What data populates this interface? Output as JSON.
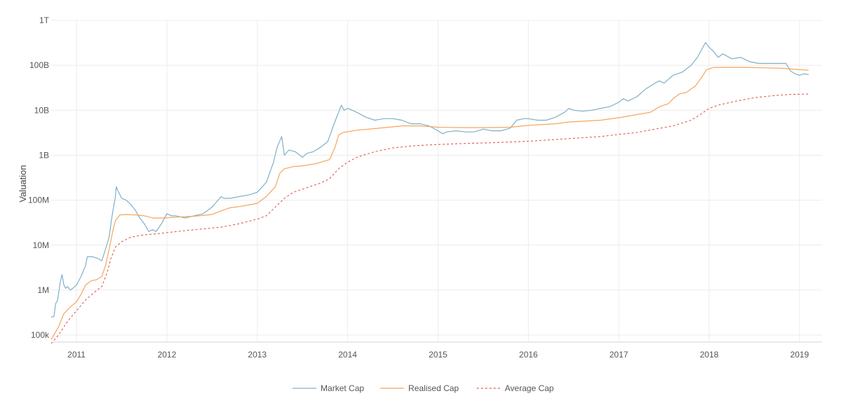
{
  "chart_data": {
    "type": "line",
    "title": "",
    "xlabel": "",
    "ylabel": "Valuation",
    "yscale": "log",
    "ylim": [
      70000,
      1000000000000
    ],
    "xlim": [
      2010.72,
      2019.25
    ],
    "grid": true,
    "legend_position": "bottom-center",
    "y_ticks": [
      {
        "value": 100000,
        "label": "100k"
      },
      {
        "value": 1000000,
        "label": "1M"
      },
      {
        "value": 10000000,
        "label": "10M"
      },
      {
        "value": 100000000,
        "label": "100M"
      },
      {
        "value": 1000000000,
        "label": "1B"
      },
      {
        "value": 10000000000,
        "label": "10B"
      },
      {
        "value": 100000000000,
        "label": "100B"
      },
      {
        "value": 1000000000000,
        "label": "1T"
      }
    ],
    "x_ticks": [
      {
        "value": 2011,
        "label": "2011"
      },
      {
        "value": 2012,
        "label": "2012"
      },
      {
        "value": 2013,
        "label": "2013"
      },
      {
        "value": 2014,
        "label": "2014"
      },
      {
        "value": 2015,
        "label": "2015"
      },
      {
        "value": 2016,
        "label": "2016"
      },
      {
        "value": 2017,
        "label": "2017"
      },
      {
        "value": 2018,
        "label": "2018"
      },
      {
        "value": 2019,
        "label": "2019"
      }
    ],
    "series": [
      {
        "name": "Market Cap",
        "color": "#7fb0c9",
        "dash": "solid",
        "points": [
          [
            2010.72,
            250000
          ],
          [
            2010.75,
            260000
          ],
          [
            2010.77,
            500000
          ],
          [
            2010.79,
            600000
          ],
          [
            2010.8,
            800000
          ],
          [
            2010.82,
            1500000
          ],
          [
            2010.84,
            2200000
          ],
          [
            2010.86,
            1300000
          ],
          [
            2010.88,
            1100000
          ],
          [
            2010.9,
            1200000
          ],
          [
            2010.93,
            1000000
          ],
          [
            2010.96,
            1100000
          ],
          [
            2011.0,
            1300000
          ],
          [
            2011.05,
            2000000
          ],
          [
            2011.1,
            3500000
          ],
          [
            2011.12,
            5500000
          ],
          [
            2011.18,
            5500000
          ],
          [
            2011.24,
            5000000
          ],
          [
            2011.28,
            4500000
          ],
          [
            2011.32,
            8000000
          ],
          [
            2011.36,
            15000000
          ],
          [
            2011.39,
            40000000
          ],
          [
            2011.41,
            70000000
          ],
          [
            2011.43,
            120000000
          ],
          [
            2011.44,
            200000000
          ],
          [
            2011.46,
            160000000
          ],
          [
            2011.5,
            110000000
          ],
          [
            2011.55,
            100000000
          ],
          [
            2011.6,
            80000000
          ],
          [
            2011.65,
            60000000
          ],
          [
            2011.7,
            40000000
          ],
          [
            2011.75,
            30000000
          ],
          [
            2011.8,
            20000000
          ],
          [
            2011.84,
            22000000
          ],
          [
            2011.88,
            20000000
          ],
          [
            2011.94,
            30000000
          ],
          [
            2012.0,
            50000000
          ],
          [
            2012.05,
            45000000
          ],
          [
            2012.1,
            45000000
          ],
          [
            2012.2,
            40000000
          ],
          [
            2012.3,
            45000000
          ],
          [
            2012.4,
            50000000
          ],
          [
            2012.5,
            70000000
          ],
          [
            2012.6,
            120000000
          ],
          [
            2012.63,
            110000000
          ],
          [
            2012.7,
            110000000
          ],
          [
            2012.8,
            120000000
          ],
          [
            2012.9,
            130000000
          ],
          [
            2013.0,
            150000000
          ],
          [
            2013.1,
            250000000
          ],
          [
            2013.18,
            700000000
          ],
          [
            2013.22,
            1500000000
          ],
          [
            2013.27,
            2600000000
          ],
          [
            2013.3,
            1000000000
          ],
          [
            2013.35,
            1300000000
          ],
          [
            2013.42,
            1200000000
          ],
          [
            2013.5,
            900000000
          ],
          [
            2013.55,
            1100000000
          ],
          [
            2013.62,
            1200000000
          ],
          [
            2013.7,
            1500000000
          ],
          [
            2013.78,
            2000000000
          ],
          [
            2013.85,
            5000000000
          ],
          [
            2013.9,
            9000000000
          ],
          [
            2013.93,
            13000000000
          ],
          [
            2013.96,
            10000000000
          ],
          [
            2014.0,
            11000000000
          ],
          [
            2014.05,
            10000000000
          ],
          [
            2014.1,
            9000000000
          ],
          [
            2014.2,
            7000000000
          ],
          [
            2014.3,
            6000000000
          ],
          [
            2014.4,
            6500000000
          ],
          [
            2014.5,
            6500000000
          ],
          [
            2014.6,
            6000000000
          ],
          [
            2014.7,
            5000000000
          ],
          [
            2014.8,
            5000000000
          ],
          [
            2014.9,
            4500000000
          ],
          [
            2015.0,
            3500000000
          ],
          [
            2015.05,
            3000000000
          ],
          [
            2015.1,
            3300000000
          ],
          [
            2015.2,
            3500000000
          ],
          [
            2015.3,
            3300000000
          ],
          [
            2015.4,
            3300000000
          ],
          [
            2015.5,
            3800000000
          ],
          [
            2015.6,
            3500000000
          ],
          [
            2015.7,
            3500000000
          ],
          [
            2015.8,
            4000000000
          ],
          [
            2015.87,
            6000000000
          ],
          [
            2015.95,
            6500000000
          ],
          [
            2016.0,
            6500000000
          ],
          [
            2016.1,
            6000000000
          ],
          [
            2016.2,
            6000000000
          ],
          [
            2016.3,
            7000000000
          ],
          [
            2016.4,
            9000000000
          ],
          [
            2016.45,
            11000000000
          ],
          [
            2016.5,
            10000000000
          ],
          [
            2016.6,
            9500000000
          ],
          [
            2016.7,
            10000000000
          ],
          [
            2016.8,
            11000000000
          ],
          [
            2016.9,
            12000000000
          ],
          [
            2017.0,
            15000000000
          ],
          [
            2017.05,
            18000000000
          ],
          [
            2017.1,
            16000000000
          ],
          [
            2017.2,
            20000000000
          ],
          [
            2017.3,
            30000000000
          ],
          [
            2017.4,
            40000000000
          ],
          [
            2017.45,
            45000000000
          ],
          [
            2017.5,
            40000000000
          ],
          [
            2017.6,
            60000000000
          ],
          [
            2017.7,
            70000000000
          ],
          [
            2017.8,
            100000000000
          ],
          [
            2017.87,
            150000000000
          ],
          [
            2017.93,
            250000000000
          ],
          [
            2017.96,
            320000000000
          ],
          [
            2018.0,
            250000000000
          ],
          [
            2018.05,
            200000000000
          ],
          [
            2018.1,
            150000000000
          ],
          [
            2018.15,
            180000000000
          ],
          [
            2018.25,
            140000000000
          ],
          [
            2018.35,
            150000000000
          ],
          [
            2018.45,
            120000000000
          ],
          [
            2018.55,
            110000000000
          ],
          [
            2018.65,
            110000000000
          ],
          [
            2018.75,
            110000000000
          ],
          [
            2018.85,
            110000000000
          ],
          [
            2018.9,
            75000000000
          ],
          [
            2018.95,
            65000000000
          ],
          [
            2019.0,
            60000000000
          ],
          [
            2019.05,
            65000000000
          ],
          [
            2019.1,
            62000000000
          ]
        ]
      },
      {
        "name": "Realised Cap",
        "color": "#f5a55f",
        "dash": "solid",
        "points": [
          [
            2010.72,
            80000
          ],
          [
            2010.8,
            150000
          ],
          [
            2010.86,
            300000
          ],
          [
            2010.92,
            400000
          ],
          [
            2011.0,
            550000
          ],
          [
            2011.05,
            800000
          ],
          [
            2011.1,
            1300000
          ],
          [
            2011.16,
            1600000
          ],
          [
            2011.22,
            1700000
          ],
          [
            2011.28,
            2000000
          ],
          [
            2011.32,
            3500000
          ],
          [
            2011.36,
            8000000
          ],
          [
            2011.4,
            20000000
          ],
          [
            2011.43,
            35000000
          ],
          [
            2011.48,
            47000000
          ],
          [
            2011.55,
            48000000
          ],
          [
            2011.65,
            47000000
          ],
          [
            2011.75,
            45000000
          ],
          [
            2011.85,
            40000000
          ],
          [
            2011.95,
            40000000
          ],
          [
            2012.1,
            42000000
          ],
          [
            2012.3,
            44000000
          ],
          [
            2012.5,
            48000000
          ],
          [
            2012.6,
            58000000
          ],
          [
            2012.7,
            68000000
          ],
          [
            2012.8,
            72000000
          ],
          [
            2012.9,
            78000000
          ],
          [
            2013.0,
            85000000
          ],
          [
            2013.1,
            120000000
          ],
          [
            2013.2,
            200000000
          ],
          [
            2013.25,
            400000000
          ],
          [
            2013.3,
            500000000
          ],
          [
            2013.4,
            560000000
          ],
          [
            2013.5,
            580000000
          ],
          [
            2013.65,
            650000000
          ],
          [
            2013.8,
            800000000
          ],
          [
            2013.86,
            1500000000
          ],
          [
            2013.9,
            2800000000
          ],
          [
            2013.95,
            3200000000
          ],
          [
            2014.1,
            3600000000
          ],
          [
            2014.3,
            3900000000
          ],
          [
            2014.6,
            4500000000
          ],
          [
            2014.8,
            4500000000
          ],
          [
            2015.0,
            4200000000
          ],
          [
            2015.3,
            4100000000
          ],
          [
            2015.5,
            4100000000
          ],
          [
            2015.8,
            4200000000
          ],
          [
            2016.0,
            4600000000
          ],
          [
            2016.3,
            5000000000
          ],
          [
            2016.45,
            5500000000
          ],
          [
            2016.6,
            5700000000
          ],
          [
            2016.8,
            6000000000
          ],
          [
            2017.0,
            6800000000
          ],
          [
            2017.2,
            8000000000
          ],
          [
            2017.35,
            9000000000
          ],
          [
            2017.45,
            12000000000
          ],
          [
            2017.55,
            14000000000
          ],
          [
            2017.6,
            18000000000
          ],
          [
            2017.67,
            23000000000
          ],
          [
            2017.75,
            25000000000
          ],
          [
            2017.85,
            35000000000
          ],
          [
            2017.92,
            55000000000
          ],
          [
            2017.97,
            80000000000
          ],
          [
            2018.05,
            90000000000
          ],
          [
            2018.2,
            90000000000
          ],
          [
            2018.4,
            90000000000
          ],
          [
            2018.6,
            88000000000
          ],
          [
            2018.8,
            86000000000
          ],
          [
            2019.0,
            80000000000
          ],
          [
            2019.1,
            78000000000
          ]
        ]
      },
      {
        "name": "Average Cap",
        "color": "#e05a52",
        "dash": "dashed",
        "points": [
          [
            2010.72,
            65000
          ],
          [
            2010.8,
            100000
          ],
          [
            2010.9,
            200000
          ],
          [
            2011.0,
            350000
          ],
          [
            2011.1,
            600000
          ],
          [
            2011.2,
            900000
          ],
          [
            2011.28,
            1200000
          ],
          [
            2011.34,
            2500000
          ],
          [
            2011.38,
            5000000
          ],
          [
            2011.43,
            9000000
          ],
          [
            2011.5,
            12000000
          ],
          [
            2011.6,
            15000000
          ],
          [
            2011.75,
            17000000
          ],
          [
            2011.9,
            18000000
          ],
          [
            2012.0,
            19000000
          ],
          [
            2012.2,
            21000000
          ],
          [
            2012.4,
            23000000
          ],
          [
            2012.6,
            25000000
          ],
          [
            2012.8,
            30000000
          ],
          [
            2013.0,
            38000000
          ],
          [
            2013.1,
            45000000
          ],
          [
            2013.2,
            70000000
          ],
          [
            2013.3,
            110000000
          ],
          [
            2013.4,
            150000000
          ],
          [
            2013.55,
            190000000
          ],
          [
            2013.7,
            240000000
          ],
          [
            2013.8,
            300000000
          ],
          [
            2013.9,
            500000000
          ],
          [
            2014.0,
            700000000
          ],
          [
            2014.1,
            900000000
          ],
          [
            2014.3,
            1200000000
          ],
          [
            2014.5,
            1450000000
          ],
          [
            2014.7,
            1600000000
          ],
          [
            2014.9,
            1700000000
          ],
          [
            2015.2,
            1800000000
          ],
          [
            2015.6,
            1900000000
          ],
          [
            2016.0,
            2050000000
          ],
          [
            2016.4,
            2300000000
          ],
          [
            2016.8,
            2600000000
          ],
          [
            2017.0,
            2900000000
          ],
          [
            2017.2,
            3200000000
          ],
          [
            2017.4,
            3800000000
          ],
          [
            2017.6,
            4500000000
          ],
          [
            2017.8,
            6000000000
          ],
          [
            2017.9,
            8000000000
          ],
          [
            2018.0,
            11000000000
          ],
          [
            2018.1,
            13000000000
          ],
          [
            2018.3,
            16000000000
          ],
          [
            2018.5,
            19000000000
          ],
          [
            2018.7,
            21000000000
          ],
          [
            2018.9,
            22500000000
          ],
          [
            2019.1,
            23000000000
          ]
        ]
      }
    ]
  }
}
